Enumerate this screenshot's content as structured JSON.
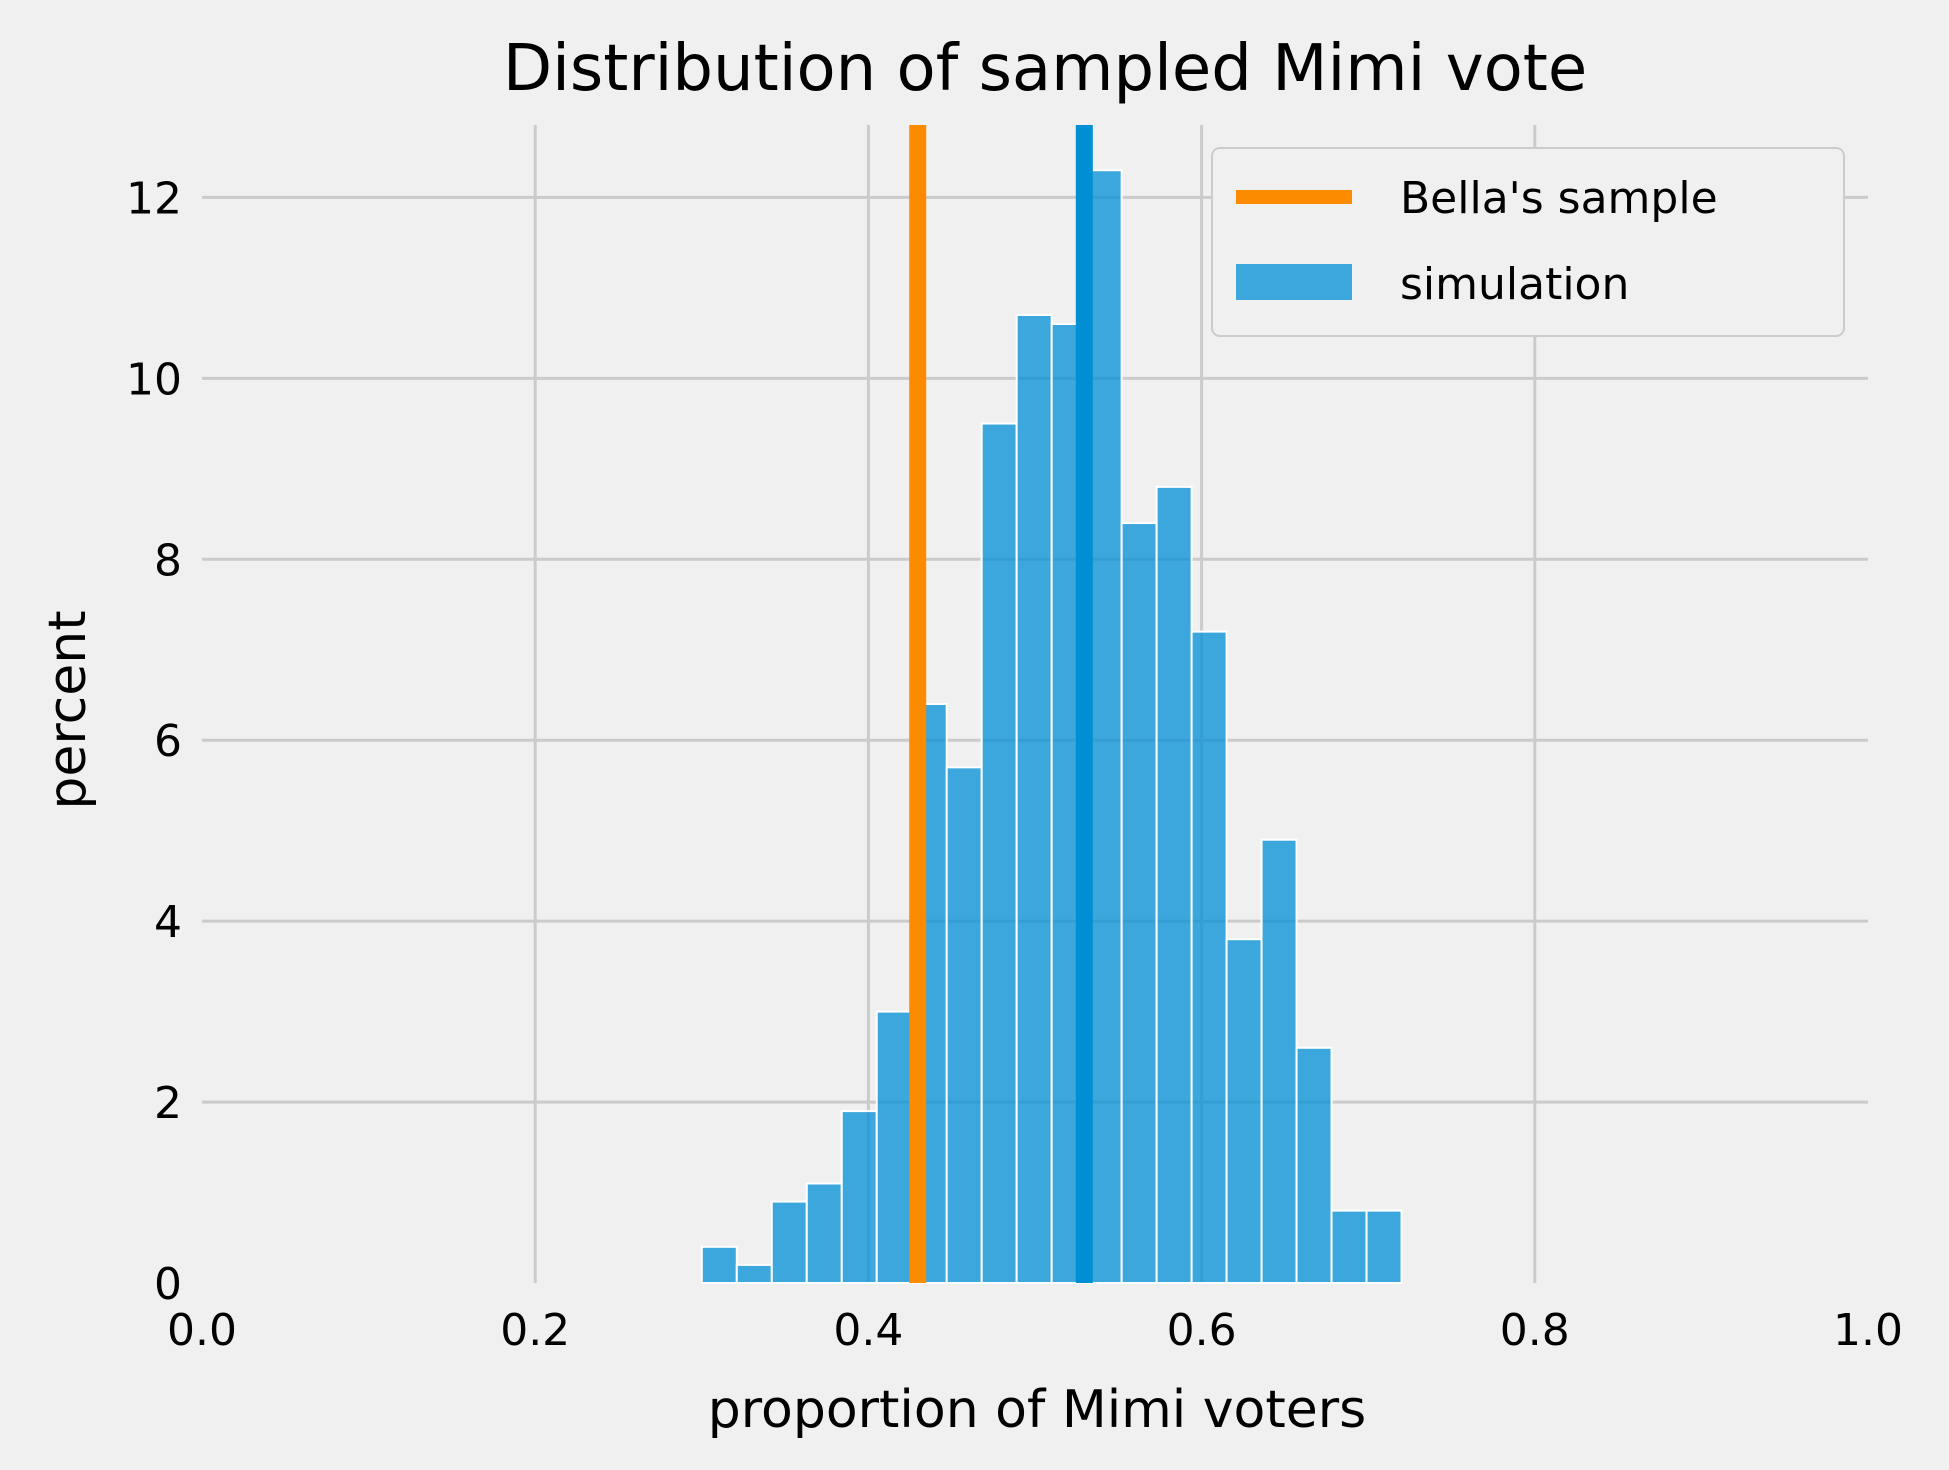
{
  "chart_data": {
    "type": "bar",
    "title": "Distribution of sampled Mimi vote",
    "xlabel": "proportion of Mimi voters",
    "ylabel": "percent",
    "xlim": [
      0.0,
      1.0
    ],
    "ylim": [
      0,
      12.8
    ],
    "x_ticks": [
      "0.0",
      "0.2",
      "0.4",
      "0.6",
      "0.8",
      "1.0"
    ],
    "x_tick_values": [
      0.0,
      0.2,
      0.4,
      0.6,
      0.8,
      1.0
    ],
    "y_ticks": [
      "0",
      "2",
      "4",
      "6",
      "8",
      "10",
      "12"
    ],
    "y_tick_values": [
      0,
      2,
      4,
      6,
      8,
      10,
      12
    ],
    "grid": true,
    "legend_position": "top-right",
    "colors": {
      "background": "#f0f0f0",
      "grid": "#cbcbcb",
      "histogram": "#008fd5",
      "sample_line": "#fc8b00",
      "bar_edge": "#ffffff"
    },
    "histogram": {
      "name": "simulation",
      "bin_width": 0.021,
      "bins": [
        {
          "x0": 0.3,
          "value": 0.4
        },
        {
          "x0": 0.321,
          "value": 0.2
        },
        {
          "x0": 0.342,
          "value": 0.9
        },
        {
          "x0": 0.363,
          "value": 1.1
        },
        {
          "x0": 0.384,
          "value": 1.9
        },
        {
          "x0": 0.405,
          "value": 3.0
        },
        {
          "x0": 0.426,
          "value": 6.4
        },
        {
          "x0": 0.447,
          "value": 5.7
        },
        {
          "x0": 0.468,
          "value": 9.5
        },
        {
          "x0": 0.489,
          "value": 10.7
        },
        {
          "x0": 0.51,
          "value": 10.6
        },
        {
          "x0": 0.531,
          "value": 12.3
        },
        {
          "x0": 0.552,
          "value": 8.4
        },
        {
          "x0": 0.573,
          "value": 8.8
        },
        {
          "x0": 0.594,
          "value": 7.2
        },
        {
          "x0": 0.615,
          "value": 3.8
        },
        {
          "x0": 0.636,
          "value": 4.9
        },
        {
          "x0": 0.657,
          "value": 2.6
        },
        {
          "x0": 0.678,
          "value": 0.8
        },
        {
          "x0": 0.699,
          "value": 0.8
        }
      ]
    },
    "vertical_lines": [
      {
        "name": "Bella's sample",
        "x": 0.4296,
        "color": "#fc8b00"
      },
      {
        "name": "",
        "x": 0.5296,
        "color": "#008fd5"
      }
    ],
    "legend": [
      {
        "label": "Bella's sample",
        "kind": "line",
        "color": "#fc8b00"
      },
      {
        "label": "simulation",
        "kind": "patch",
        "color": "#008fd5"
      }
    ]
  }
}
